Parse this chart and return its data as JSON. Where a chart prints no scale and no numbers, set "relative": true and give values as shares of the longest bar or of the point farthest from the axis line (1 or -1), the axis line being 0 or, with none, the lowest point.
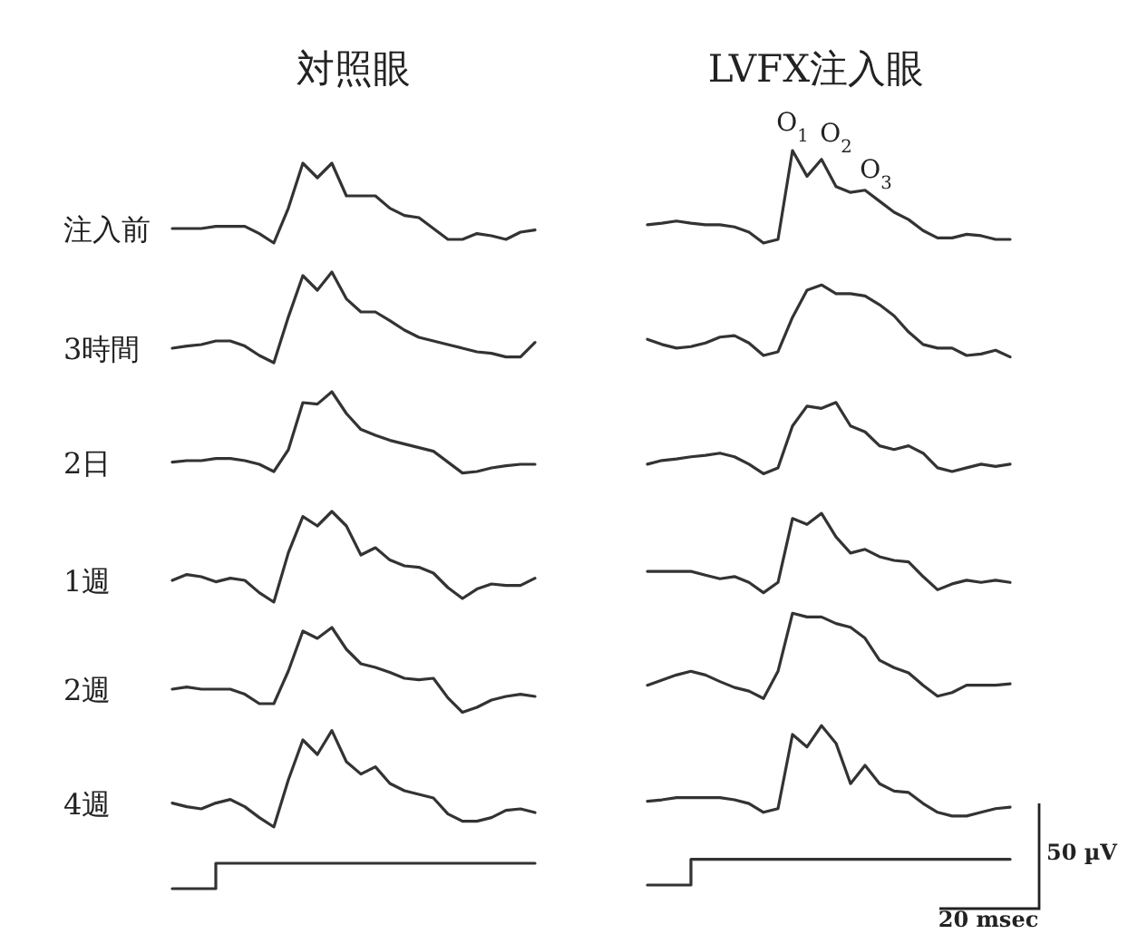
{
  "chart_data": [
    {
      "type": "line",
      "title": "対照眼",
      "relative": true,
      "categories": [
        null,
        null,
        null,
        null,
        null,
        null,
        null,
        null,
        null,
        null,
        null,
        null,
        null,
        null,
        null,
        null,
        null,
        null,
        null,
        null,
        null,
        null,
        null,
        null,
        null,
        null
      ],
      "series": [
        {
          "name": "注入前",
          "color": "#333333",
          "values": [
            0.91,
            0.91,
            0.91,
            0.913,
            0.913,
            0.913,
            0.903,
            0.89,
            0.938,
            1.0,
            0.98,
            1.0,
            0.955,
            0.955,
            0.955,
            0.938,
            0.928,
            0.925,
            0.91,
            0.895,
            0.895,
            0.903,
            0.9,
            0.895,
            0.905,
            0.908
          ]
        },
        {
          "name": "3時間",
          "color": "#333333",
          "values": [
            0.745,
            0.748,
            0.75,
            0.755,
            0.755,
            0.748,
            0.735,
            0.725,
            0.788,
            0.845,
            0.825,
            0.85,
            0.813,
            0.795,
            0.795,
            0.783,
            0.77,
            0.76,
            0.755,
            0.75,
            0.745,
            0.74,
            0.738,
            0.733,
            0.733,
            0.753
          ]
        },
        {
          "name": "2日",
          "color": "#333333",
          "values": [
            0.588,
            0.59,
            0.59,
            0.593,
            0.593,
            0.59,
            0.585,
            0.575,
            0.605,
            0.67,
            0.668,
            0.685,
            0.655,
            0.633,
            0.625,
            0.618,
            0.613,
            0.608,
            0.603,
            0.588,
            0.573,
            0.575,
            0.58,
            0.583,
            0.585,
            0.585
          ]
        },
        {
          "name": "1週",
          "color": "#333333",
          "values": [
            0.425,
            0.433,
            0.43,
            0.423,
            0.428,
            0.425,
            0.408,
            0.395,
            0.463,
            0.513,
            0.5,
            0.52,
            0.5,
            0.46,
            0.47,
            0.453,
            0.445,
            0.443,
            0.435,
            0.415,
            0.4,
            0.413,
            0.42,
            0.418,
            0.418,
            0.428
          ]
        },
        {
          "name": "2週",
          "color": "#333333",
          "values": [
            0.275,
            0.278,
            0.275,
            0.275,
            0.275,
            0.268,
            0.255,
            0.255,
            0.3,
            0.355,
            0.345,
            0.36,
            0.33,
            0.31,
            0.305,
            0.298,
            0.29,
            0.288,
            0.29,
            0.263,
            0.243,
            0.25,
            0.26,
            0.265,
            0.268,
            0.265
          ]
        },
        {
          "name": "4週",
          "color": "#333333",
          "values": [
            0.118,
            0.113,
            0.11,
            0.118,
            0.123,
            0.113,
            0.098,
            0.085,
            0.15,
            0.205,
            0.185,
            0.218,
            0.175,
            0.158,
            0.168,
            0.145,
            0.135,
            0.13,
            0.125,
            0.103,
            0.093,
            0.093,
            0.098,
            0.108,
            0.11,
            0.105
          ]
        },
        {
          "type": "step",
          "color": "#333333",
          "values": [
            0,
            0,
            0,
            0.035,
            0.035,
            0.035,
            0.035,
            0.035,
            0.035,
            0.035,
            0.035,
            0.035,
            0.035,
            0.035,
            0.035,
            0.035,
            0.035,
            0.035,
            0.035,
            0.035,
            0.035,
            0.035,
            0.035,
            0.035,
            0.035,
            0.035
          ]
        }
      ]
    },
    {
      "type": "line",
      "title": "LVFX注入眼",
      "relative": true,
      "categories": [
        null,
        null,
        null,
        null,
        null,
        null,
        null,
        null,
        null,
        null,
        null,
        null,
        null,
        null,
        null,
        null,
        null,
        null,
        null,
        null,
        null,
        null,
        null,
        null,
        null,
        null
      ],
      "annotations": [
        "O$_{1}$",
        "O$_{2}$",
        "O$_{3}$",
        "50 µV",
        "20 msec"
      ],
      "series": [
        {
          "color": "#333333",
          "values": [
            0.899,
            0.901,
            0.904,
            0.901,
            0.899,
            0.899,
            0.896,
            0.889,
            0.874,
            0.879,
            1.0,
            0.965,
            0.988,
            0.951,
            0.943,
            0.946,
            0.931,
            0.916,
            0.906,
            0.891,
            0.881,
            0.881,
            0.886,
            0.884,
            0.879,
            0.879
          ]
        },
        {
          "color": "#333333",
          "values": [
            0.743,
            0.736,
            0.731,
            0.733,
            0.738,
            0.746,
            0.748,
            0.738,
            0.721,
            0.726,
            0.773,
            0.81,
            0.817,
            0.805,
            0.805,
            0.802,
            0.79,
            0.775,
            0.753,
            0.736,
            0.731,
            0.731,
            0.721,
            0.723,
            0.728,
            0.719
          ]
        },
        {
          "color": "#333333",
          "values": [
            0.573,
            0.578,
            0.58,
            0.583,
            0.585,
            0.588,
            0.583,
            0.573,
            0.56,
            0.568,
            0.625,
            0.652,
            0.649,
            0.657,
            0.625,
            0.617,
            0.598,
            0.593,
            0.598,
            0.588,
            0.568,
            0.563,
            0.568,
            0.573,
            0.57,
            0.573
          ]
        },
        {
          "color": "#333333",
          "values": [
            0.427,
            0.427,
            0.427,
            0.427,
            0.422,
            0.417,
            0.42,
            0.412,
            0.398,
            0.412,
            0.499,
            0.491,
            0.506,
            0.474,
            0.452,
            0.457,
            0.447,
            0.442,
            0.44,
            0.42,
            0.402,
            0.41,
            0.415,
            0.412,
            0.415,
            0.412
          ]
        },
        {
          "color": "#333333",
          "values": [
            0.272,
            0.279,
            0.286,
            0.291,
            0.286,
            0.277,
            0.269,
            0.264,
            0.254,
            0.291,
            0.37,
            0.365,
            0.365,
            0.356,
            0.351,
            0.336,
            0.306,
            0.296,
            0.289,
            0.272,
            0.257,
            0.262,
            0.272,
            0.272,
            0.272,
            0.274
          ]
        },
        {
          "color": "#333333",
          "values": [
            0.114,
            0.116,
            0.119,
            0.119,
            0.119,
            0.119,
            0.116,
            0.111,
            0.099,
            0.104,
            0.205,
            0.188,
            0.217,
            0.193,
            0.138,
            0.163,
            0.138,
            0.128,
            0.126,
            0.111,
            0.099,
            0.094,
            0.094,
            0.099,
            0.104,
            0.106
          ]
        },
        {
          "type": "step",
          "color": "#333333",
          "values": [
            0,
            0,
            0,
            0.035,
            0.035,
            0.035,
            0.035,
            0.035,
            0.035,
            0.035,
            0.035,
            0.035,
            0.035,
            0.035,
            0.035,
            0.035,
            0.035,
            0.035,
            0.035,
            0.035,
            0.035,
            0.035,
            0.035,
            0.035,
            0.035,
            0.035
          ]
        }
      ]
    }
  ]
}
